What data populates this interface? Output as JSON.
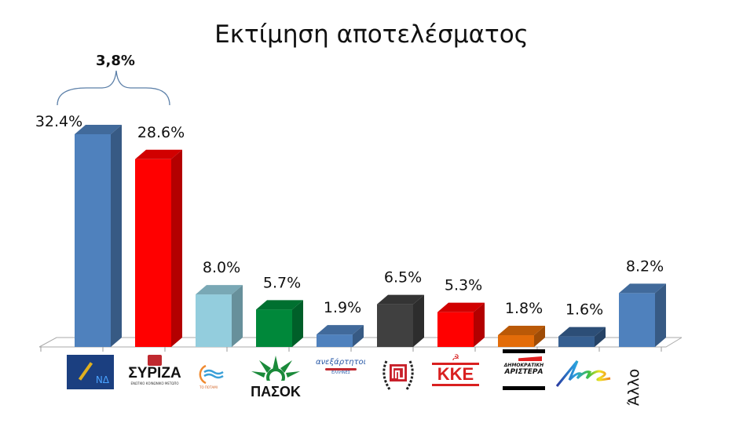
{
  "title": "Εκτίμηση αποτελέσματος",
  "difference_annotation": "3,8%",
  "chart_data": {
    "type": "bar",
    "title": "Εκτίμηση αποτελέσματος",
    "xlabel": "",
    "ylabel": "",
    "ylim": [
      0,
      35
    ],
    "grid": false,
    "legend": "none",
    "style": "3d-column",
    "categories": [
      "ΝΔ",
      "ΣΥΡΙΖΑ",
      "Το Ποτάμι",
      "ΠΑΣΟΚ",
      "Ανεξάρτητοι Έλληνες",
      "Χρυσή Αυγή",
      "ΚΚΕ",
      "Δημοκρατική Αριστερά",
      "Λαός",
      "Άλλο"
    ],
    "values": [
      32.4,
      28.6,
      8.0,
      5.7,
      1.9,
      6.5,
      5.3,
      1.8,
      1.6,
      8.2
    ],
    "value_labels": [
      "32.4%",
      "28.6%",
      "8.0%",
      "5.7%",
      "1.9%",
      "6.5%",
      "5.3%",
      "1.8%",
      "1.6%",
      "8.2%"
    ],
    "colors": [
      "#4f81bd",
      "#ff0000",
      "#93cddd",
      "#00883a",
      "#4f81bd",
      "#404040",
      "#ff0000",
      "#e36c09",
      "#365f91",
      "#4f81bd"
    ],
    "annotations": [
      {
        "text": "3,8%",
        "between": [
          "ΝΔ",
          "ΣΥΡΙΖΑ"
        ],
        "type": "brace"
      }
    ]
  },
  "logos": {
    "nd": "ΝΔ",
    "syriza": "ΣΥΡΙΖΑ",
    "syriza_sub": "ΕΝΩΤΙΚΟ ΚΟΙΝΩΝΙΚΟ ΜΕΤΩΠΟ",
    "potami": "ΤΟ ΠΟΤΑΜΙ",
    "pasok": "ΠΑΣΟΚ",
    "anel": "ανεξάρτητοι",
    "anel_sub": "ΕΛΛΗΝΕΣ",
    "kke": "ΚΚΕ",
    "dimar_1": "ΔΗΜΟΚΡΑΤΙΚΗ",
    "dimar_2": "ΑΡΙΣΤΕΡΑ",
    "laos": "Λαός",
    "other": "Άλλο"
  }
}
